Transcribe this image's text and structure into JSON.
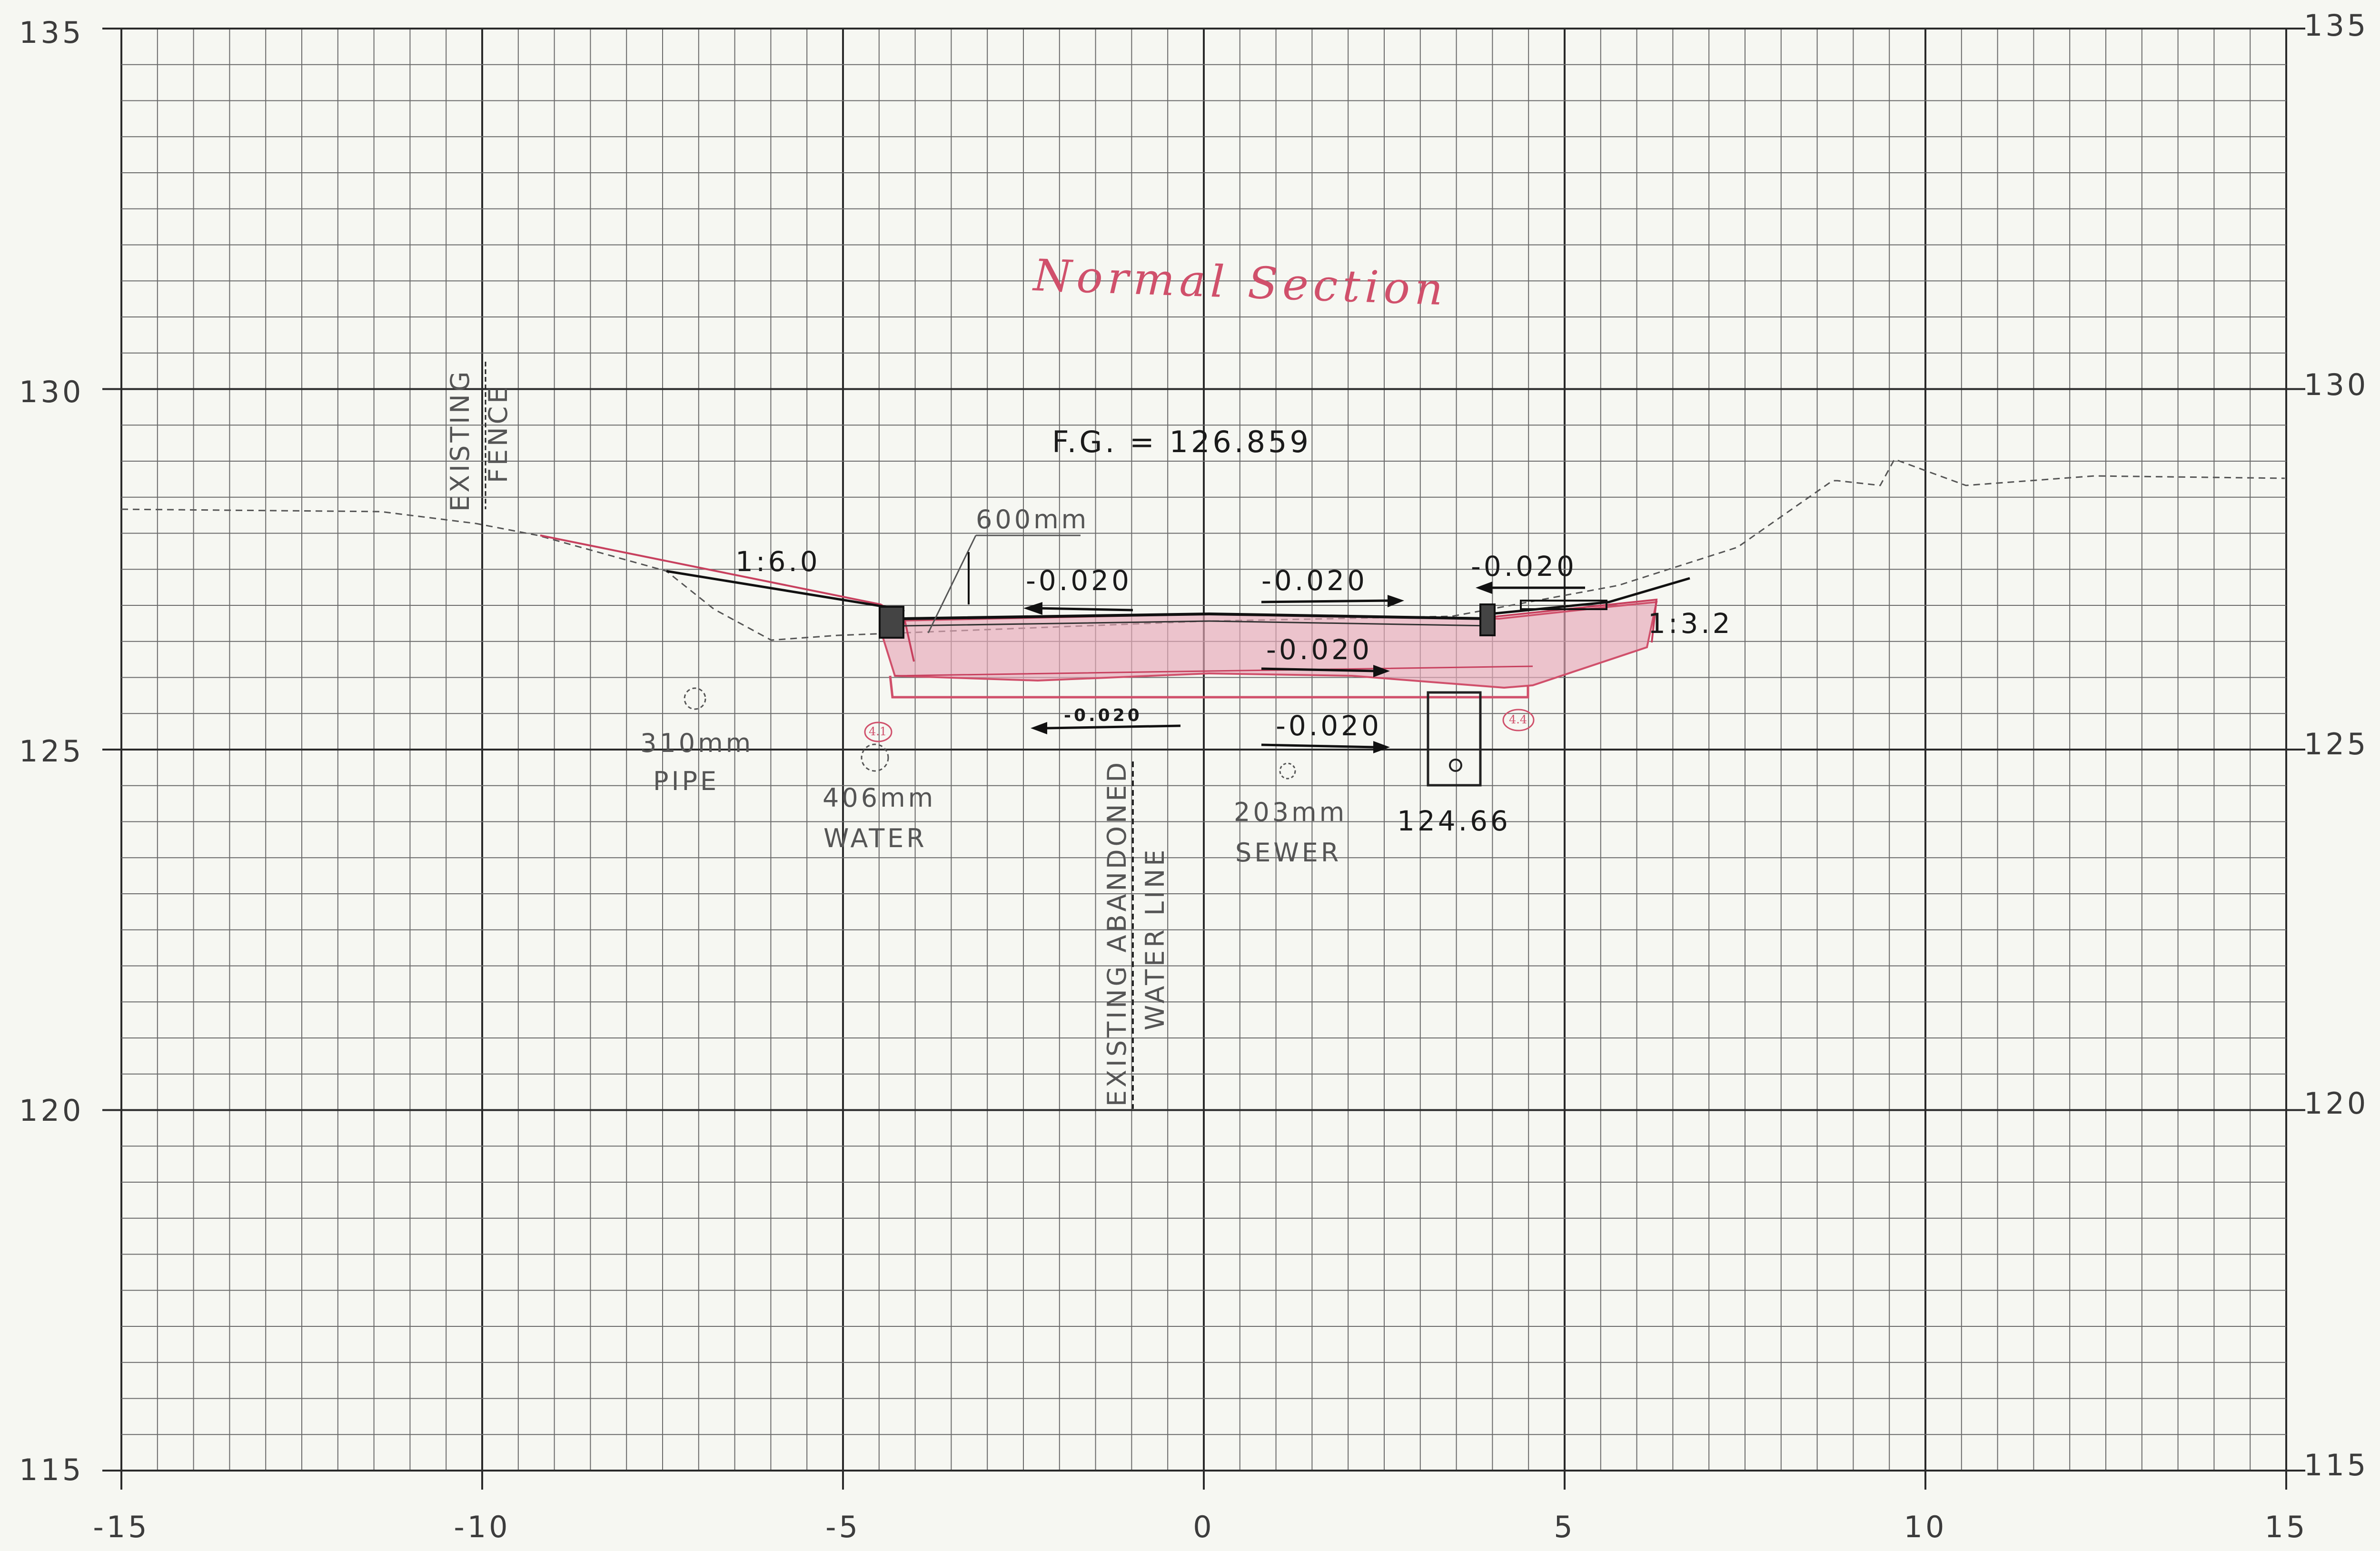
{
  "title": "Normal Section",
  "finished_grade": "F.G. = 126.859",
  "axis": {
    "x_ticks": [
      "-15",
      "-10",
      "-5",
      "0",
      "5",
      "10",
      "15"
    ],
    "y_ticks": [
      "135",
      "130",
      "125",
      "120",
      "115"
    ],
    "x_range": [
      -15,
      15
    ],
    "y_range": [
      115,
      135
    ],
    "grid": true
  },
  "labels": {
    "fence": [
      "EXISTING",
      "FENCE"
    ],
    "abandoned_water_line": [
      "EXISTING ABANDONED",
      "WATER LINE"
    ],
    "pipe": [
      "310mm",
      "PIPE"
    ],
    "water": [
      "406mm",
      "WATER"
    ],
    "sewer": [
      "203mm",
      "SEWER"
    ],
    "width": "600mm",
    "slope_left": "1:6.0",
    "slope_right": "1:3.2",
    "cross_slopes": [
      "-0.020",
      "-0.020",
      "-0.020",
      "-0.020",
      "-0.020"
    ],
    "handwritten_slope": "-0.020",
    "invert": "124.66",
    "hand_notes": [
      "4.1",
      "4.4"
    ]
  },
  "colors": {
    "grid_major": "#2a2a2a",
    "grid_minor": "#6a6a6a",
    "markup": "#d0506b",
    "existing_ground": "#555555"
  }
}
